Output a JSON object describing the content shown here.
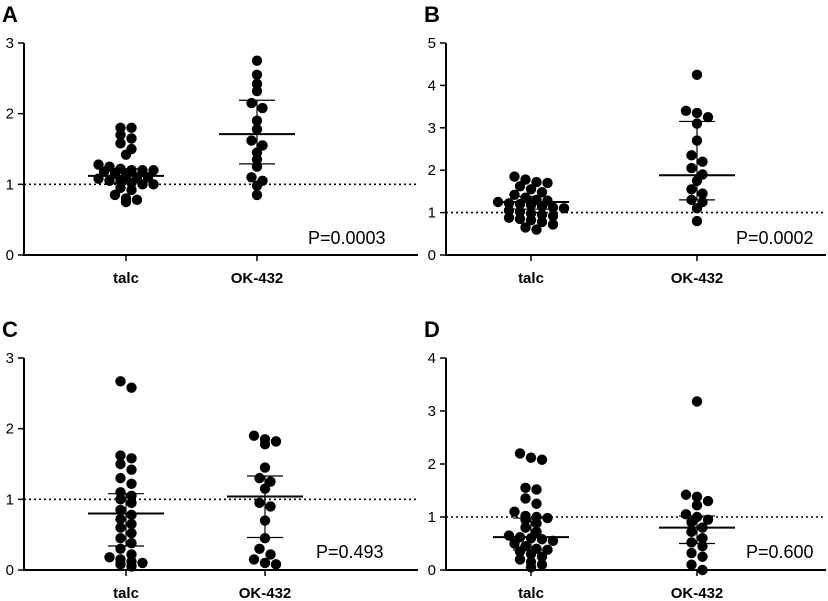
{
  "chart_data": [
    {
      "type": "scatter",
      "panel": "A",
      "title": "",
      "xlabel": "",
      "ylabel": "",
      "categories": [
        "talc",
        "OK-432"
      ],
      "ylim": [
        0,
        3
      ],
      "yticks": [
        0,
        1,
        2,
        3
      ],
      "reference_line": 1,
      "p_value": "P=0.0003",
      "groups": [
        {
          "name": "talc",
          "mean": 1.12,
          "lower": 1.02,
          "upper": 1.22,
          "values": [
            1.8,
            1.8,
            1.7,
            1.65,
            1.58,
            1.5,
            1.42,
            1.28,
            1.25,
            1.22,
            1.2,
            1.2,
            1.2,
            1.18,
            1.15,
            1.12,
            1.1,
            1.1,
            1.08,
            1.05,
            1.05,
            1.02,
            1.0,
            1.0,
            0.95,
            0.92,
            0.85,
            0.8,
            0.78,
            0.75
          ]
        },
        {
          "name": "OK-432",
          "mean": 1.71,
          "lower": 1.29,
          "upper": 2.19,
          "values": [
            2.75,
            2.55,
            2.42,
            2.32,
            2.15,
            2.08,
            1.9,
            1.78,
            1.62,
            1.55,
            1.45,
            1.35,
            1.25,
            1.1,
            1.05,
            0.98,
            0.85
          ]
        }
      ]
    },
    {
      "type": "scatter",
      "panel": "B",
      "title": "",
      "xlabel": "",
      "ylabel": "",
      "categories": [
        "talc",
        "OK-432"
      ],
      "ylim": [
        0,
        5
      ],
      "yticks": [
        0,
        1,
        2,
        3,
        4,
        5
      ],
      "reference_line": 1,
      "p_value": "P=0.0002",
      "groups": [
        {
          "name": "talc",
          "mean": 1.25,
          "lower": 1.08,
          "upper": 1.38,
          "values": [
            1.85,
            1.78,
            1.72,
            1.7,
            1.62,
            1.55,
            1.48,
            1.42,
            1.35,
            1.3,
            1.28,
            1.25,
            1.22,
            1.2,
            1.18,
            1.15,
            1.12,
            1.1,
            1.05,
            1.02,
            0.98,
            0.95,
            0.92,
            0.88,
            0.85,
            0.82,
            0.78,
            0.72,
            0.65,
            0.6
          ]
        },
        {
          "name": "OK-432",
          "mean": 1.88,
          "lower": 1.3,
          "upper": 3.15,
          "values": [
            4.25,
            3.4,
            3.35,
            3.25,
            3.1,
            2.7,
            2.35,
            2.2,
            2.05,
            1.9,
            1.75,
            1.55,
            1.45,
            1.3,
            1.25,
            1.1,
            0.8
          ]
        }
      ]
    },
    {
      "type": "scatter",
      "panel": "C",
      "title": "",
      "xlabel": "",
      "ylabel": "",
      "categories": [
        "talc",
        "OK-432"
      ],
      "ylim": [
        0,
        3
      ],
      "yticks": [
        0,
        1,
        2,
        3
      ],
      "reference_line": 1,
      "p_value": "P=0.493",
      "groups": [
        {
          "name": "talc",
          "mean": 0.8,
          "lower": 0.34,
          "upper": 1.08,
          "values": [
            2.67,
            2.58,
            1.62,
            1.58,
            1.5,
            1.42,
            1.3,
            1.22,
            1.1,
            1.05,
            1.0,
            0.95,
            0.85,
            0.78,
            0.72,
            0.65,
            0.6,
            0.52,
            0.45,
            0.38,
            0.3,
            0.22,
            0.18,
            0.15,
            0.12,
            0.1,
            0.08,
            0.05
          ]
        },
        {
          "name": "OK-432",
          "mean": 1.04,
          "lower": 0.46,
          "upper": 1.33,
          "values": [
            1.9,
            1.85,
            1.82,
            1.78,
            1.45,
            1.3,
            1.25,
            1.15,
            0.95,
            0.9,
            0.7,
            0.45,
            0.3,
            0.22,
            0.15,
            0.1,
            0.08
          ]
        }
      ]
    },
    {
      "type": "scatter",
      "panel": "D",
      "title": "",
      "xlabel": "",
      "ylabel": "",
      "categories": [
        "talc",
        "OK-432"
      ],
      "ylim": [
        0,
        4
      ],
      "yticks": [
        0,
        1,
        2,
        3,
        4
      ],
      "reference_line": 1,
      "p_value": "P=0.600",
      "groups": [
        {
          "name": "talc",
          "mean": 0.62,
          "lower": 0.38,
          "upper": 0.98,
          "values": [
            2.2,
            2.12,
            2.08,
            1.55,
            1.52,
            1.35,
            1.25,
            1.1,
            1.02,
            1.0,
            0.98,
            0.95,
            0.88,
            0.8,
            0.72,
            0.65,
            0.62,
            0.6,
            0.58,
            0.55,
            0.5,
            0.45,
            0.4,
            0.38,
            0.35,
            0.3,
            0.25,
            0.2,
            0.15,
            0.1,
            0.05
          ]
        },
        {
          "name": "OK-432",
          "mean": 0.8,
          "lower": 0.5,
          "upper": 1.02,
          "values": [
            3.18,
            1.42,
            1.38,
            1.3,
            1.22,
            1.05,
            1.0,
            0.95,
            0.9,
            0.8,
            0.72,
            0.6,
            0.52,
            0.45,
            0.32,
            0.25,
            0.1,
            0.0
          ]
        }
      ]
    }
  ]
}
